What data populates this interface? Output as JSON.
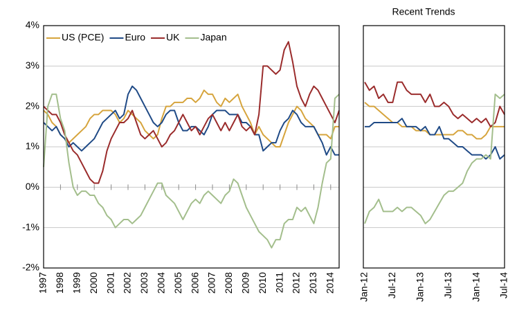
{
  "chart_data": [
    {
      "type": "line",
      "x": [
        1997,
        1997.25,
        1997.5,
        1997.75,
        1998,
        1998.25,
        1998.5,
        1998.75,
        1999,
        1999.25,
        1999.5,
        1999.75,
        2000,
        2000.25,
        2000.5,
        2000.75,
        2001,
        2001.25,
        2001.5,
        2001.75,
        2002,
        2002.25,
        2002.5,
        2002.75,
        2003,
        2003.25,
        2003.5,
        2003.75,
        2004,
        2004.25,
        2004.5,
        2004.75,
        2005,
        2005.25,
        2005.5,
        2005.75,
        2006,
        2006.25,
        2006.5,
        2006.75,
        2007,
        2007.25,
        2007.5,
        2007.75,
        2008,
        2008.25,
        2008.5,
        2008.75,
        2009,
        2009.25,
        2009.5,
        2009.75,
        2010,
        2010.25,
        2010.5,
        2010.75,
        2011,
        2011.25,
        2011.5,
        2011.75,
        2012,
        2012.25,
        2012.5,
        2012.75,
        2013,
        2013.25,
        2013.5,
        2013.75,
        2014,
        2014.25,
        2014.5
      ],
      "series": [
        {
          "name": "US (PCE)",
          "color": "#d6a43c",
          "values": [
            1.9,
            1.8,
            1.6,
            1.5,
            1.3,
            1.2,
            1.1,
            1.2,
            1.3,
            1.4,
            1.5,
            1.7,
            1.8,
            1.8,
            1.9,
            1.9,
            1.9,
            1.8,
            1.6,
            1.7,
            1.9,
            1.8,
            1.7,
            1.6,
            1.4,
            1.3,
            1.2,
            1.3,
            1.7,
            2.0,
            2.0,
            2.1,
            2.1,
            2.1,
            2.2,
            2.2,
            2.1,
            2.2,
            2.4,
            2.3,
            2.3,
            2.1,
            2.0,
            2.2,
            2.1,
            2.2,
            2.3,
            2.0,
            1.8,
            1.6,
            1.3,
            1.5,
            1.3,
            1.2,
            1.1,
            1.0,
            1.0,
            1.3,
            1.6,
            1.8,
            2.0,
            1.9,
            1.7,
            1.6,
            1.5,
            1.3,
            1.3,
            1.3,
            1.2,
            1.5,
            1.5
          ]
        },
        {
          "name": "Euro",
          "color": "#1f4a86",
          "values": [
            1.6,
            1.5,
            1.4,
            1.5,
            1.3,
            1.2,
            1.0,
            1.1,
            1.0,
            0.9,
            1.0,
            1.1,
            1.2,
            1.4,
            1.6,
            1.7,
            1.8,
            1.9,
            1.7,
            1.8,
            2.3,
            2.5,
            2.4,
            2.2,
            2.0,
            1.8,
            1.6,
            1.5,
            1.6,
            1.8,
            1.9,
            1.9,
            1.6,
            1.4,
            1.4,
            1.5,
            1.5,
            1.4,
            1.3,
            1.5,
            1.8,
            1.9,
            1.9,
            1.9,
            1.8,
            1.8,
            1.8,
            1.6,
            1.6,
            1.5,
            1.3,
            1.3,
            0.9,
            1.0,
            1.1,
            1.1,
            1.4,
            1.6,
            1.7,
            1.9,
            1.8,
            1.6,
            1.5,
            1.5,
            1.5,
            1.3,
            1.1,
            0.8,
            1.0,
            0.8,
            0.8
          ]
        },
        {
          "name": "UK",
          "color": "#9a2b2b",
          "values": [
            2.0,
            1.9,
            1.8,
            1.8,
            1.6,
            1.3,
            1.1,
            0.9,
            0.8,
            0.6,
            0.4,
            0.2,
            0.1,
            0.1,
            0.4,
            0.9,
            1.2,
            1.4,
            1.6,
            1.6,
            1.7,
            1.9,
            1.6,
            1.3,
            1.2,
            1.3,
            1.4,
            1.2,
            1.0,
            1.1,
            1.3,
            1.4,
            1.6,
            1.8,
            1.6,
            1.4,
            1.5,
            1.3,
            1.5,
            1.7,
            1.8,
            1.6,
            1.4,
            1.6,
            1.4,
            1.6,
            1.8,
            1.5,
            1.4,
            1.5,
            1.3,
            1.8,
            3.0,
            3.0,
            2.9,
            2.8,
            2.9,
            3.4,
            3.6,
            3.1,
            2.5,
            2.2,
            2.0,
            2.3,
            2.5,
            2.4,
            2.2,
            2.0,
            1.8,
            1.6,
            1.9
          ]
        },
        {
          "name": "Japan",
          "color": "#a3be8c",
          "values": [
            0.5,
            2.0,
            2.3,
            2.3,
            1.7,
            1.4,
            0.6,
            0.0,
            -0.2,
            -0.1,
            -0.1,
            -0.2,
            -0.2,
            -0.4,
            -0.5,
            -0.7,
            -0.8,
            -1.0,
            -0.9,
            -0.8,
            -0.8,
            -0.9,
            -0.8,
            -0.7,
            -0.5,
            -0.3,
            -0.1,
            0.1,
            0.1,
            -0.2,
            -0.3,
            -0.4,
            -0.6,
            -0.8,
            -0.6,
            -0.4,
            -0.3,
            -0.4,
            -0.2,
            -0.1,
            -0.2,
            -0.3,
            -0.4,
            -0.2,
            -0.1,
            0.2,
            0.1,
            -0.2,
            -0.5,
            -0.7,
            -0.9,
            -1.1,
            -1.2,
            -1.3,
            -1.5,
            -1.3,
            -1.3,
            -0.9,
            -0.8,
            -0.8,
            -0.5,
            -0.6,
            -0.5,
            -0.7,
            -0.9,
            -0.5,
            0.1,
            0.6,
            0.7,
            2.2,
            2.3
          ]
        }
      ],
      "xlim": [
        1997,
        2014.5
      ],
      "xticks": [
        1997,
        1998,
        1999,
        2000,
        2001,
        2002,
        2003,
        2004,
        2005,
        2006,
        2007,
        2008,
        2009,
        2010,
        2011,
        2012,
        2013,
        2014
      ],
      "ylim": [
        -2,
        4
      ],
      "yticks": [
        {
          "value": -2,
          "label": "-2%"
        },
        {
          "value": -1,
          "label": "-1%"
        },
        {
          "value": 0,
          "label": "0%"
        },
        {
          "value": 1,
          "label": "1%"
        },
        {
          "value": 2,
          "label": "2%"
        },
        {
          "value": 3,
          "label": "3%"
        },
        {
          "value": 4,
          "label": "4%"
        }
      ],
      "grid": true,
      "legend": "top-left"
    },
    {
      "type": "line",
      "title": "Recent Trends",
      "categories": [
        "Jan-12",
        null,
        null,
        null,
        null,
        null,
        "Jul-12",
        null,
        null,
        null,
        null,
        null,
        "Jan-13",
        null,
        null,
        null,
        null,
        null,
        "Jul-13",
        null,
        null,
        null,
        null,
        null,
        "Jan-14",
        null,
        null,
        null,
        null,
        null,
        "Jul-14"
      ],
      "series": [
        {
          "name": "US (PCE)",
          "color": "#d6a43c",
          "values": [
            2.1,
            2.0,
            2.0,
            1.9,
            1.8,
            1.7,
            1.6,
            1.6,
            1.5,
            1.5,
            1.5,
            1.4,
            1.4,
            1.4,
            1.3,
            1.3,
            1.3,
            1.3,
            1.3,
            1.3,
            1.4,
            1.4,
            1.3,
            1.3,
            1.2,
            1.2,
            1.3,
            1.5,
            1.5,
            1.5,
            1.5
          ]
        },
        {
          "name": "Euro",
          "color": "#1f4a86",
          "values": [
            1.5,
            1.5,
            1.6,
            1.6,
            1.6,
            1.6,
            1.6,
            1.6,
            1.7,
            1.5,
            1.5,
            1.5,
            1.4,
            1.5,
            1.3,
            1.3,
            1.5,
            1.2,
            1.2,
            1.1,
            1.0,
            1.0,
            0.9,
            0.8,
            0.8,
            0.8,
            0.7,
            0.8,
            1.0,
            0.7,
            0.8
          ]
        },
        {
          "name": "UK",
          "color": "#9a2b2b",
          "values": [
            2.6,
            2.4,
            2.5,
            2.2,
            2.3,
            2.1,
            2.1,
            2.6,
            2.6,
            2.4,
            2.3,
            2.3,
            2.3,
            2.1,
            2.3,
            2.0,
            2.0,
            2.1,
            2.0,
            1.8,
            1.7,
            1.8,
            1.7,
            1.6,
            1.7,
            1.6,
            1.7,
            1.5,
            1.6,
            2.0,
            1.8
          ]
        },
        {
          "name": "Japan",
          "color": "#a3be8c",
          "values": [
            -0.9,
            -0.6,
            -0.5,
            -0.3,
            -0.6,
            -0.6,
            -0.6,
            -0.5,
            -0.6,
            -0.5,
            -0.5,
            -0.6,
            -0.7,
            -0.9,
            -0.8,
            -0.6,
            -0.4,
            -0.2,
            -0.1,
            -0.1,
            0.0,
            0.1,
            0.4,
            0.6,
            0.7,
            0.7,
            0.8,
            0.7,
            2.3,
            2.2,
            2.3
          ]
        }
      ],
      "ylim": [
        -2,
        4
      ],
      "yticks": [
        -2,
        -1,
        0,
        1,
        2,
        3,
        4
      ],
      "grid": true
    }
  ]
}
